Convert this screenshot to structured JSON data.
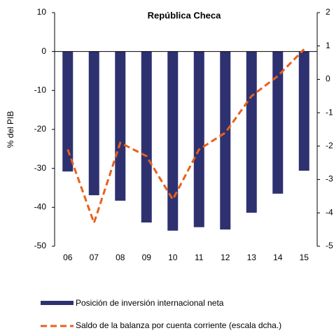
{
  "chart_data": {
    "type": "bar_line",
    "title": "República Checa",
    "y_label": "% del PIB",
    "categories": [
      "06",
      "07",
      "08",
      "09",
      "10",
      "11",
      "12",
      "13",
      "14",
      "15"
    ],
    "series": [
      {
        "name": "Posición de inversión internacional neta",
        "type": "bar",
        "color": "#2e3170",
        "values": [
          -30.8,
          -36.9,
          -38.3,
          -43.9,
          -46.0,
          -45.1,
          -45.7,
          -41.4,
          -36.5,
          -30.6
        ]
      },
      {
        "name": "Saldo de la balanza por cuenta corriente (escala dcha.)",
        "type": "line",
        "axis": "y2",
        "color": "#e8601c",
        "values": [
          -2.1,
          -4.3,
          -1.9,
          -2.3,
          -3.6,
          -2.1,
          -1.6,
          -0.5,
          0.1,
          0.9
        ]
      }
    ],
    "ylim": [
      -50,
      10
    ],
    "yticks": [
      -50,
      -40,
      -30,
      -20,
      -10,
      0,
      10
    ],
    "y2lim": [
      -5,
      2
    ],
    "y2ticks": [
      -5,
      -4,
      -3,
      -2,
      -1,
      0,
      1,
      2
    ]
  }
}
